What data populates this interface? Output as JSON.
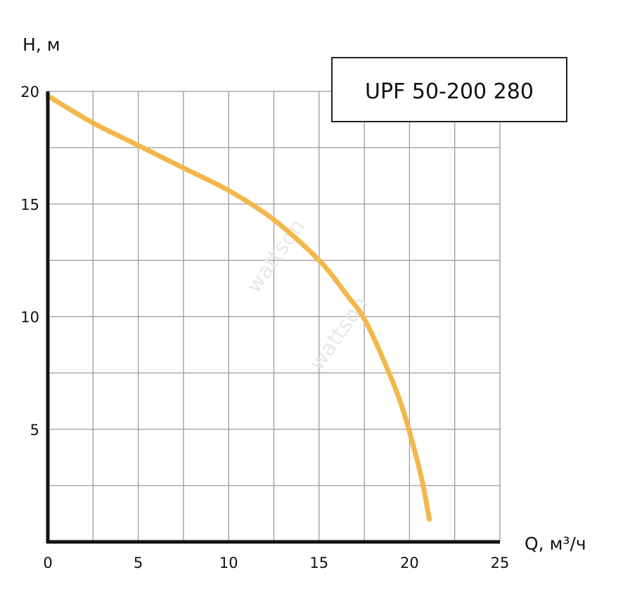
{
  "chart_data": {
    "type": "line",
    "title": "",
    "xlabel": "Q, м³/ч",
    "ylabel": "H, м",
    "xlim": [
      0,
      25
    ],
    "ylim": [
      0,
      20
    ],
    "x_ticks": [
      "0",
      "5",
      "10",
      "15",
      "20",
      "25"
    ],
    "y_ticks": [
      "5",
      "10",
      "15",
      "20"
    ],
    "grid": true,
    "grid_step_x": 2.5,
    "grid_step_y": 2.5,
    "legend_box": {
      "label": "UPF 50-200 280",
      "placement": "top-right"
    },
    "watermark": "wattson",
    "series": [
      {
        "name": "UPF 50-200 280",
        "color": "#f2b84b",
        "x": [
          0,
          2.5,
          5,
          7.5,
          10,
          12.5,
          15,
          16.5,
          17.5,
          18.5,
          19.5,
          20.2,
          20.7,
          21.1
        ],
        "y": [
          19.8,
          18.6,
          17.6,
          16.6,
          15.6,
          14.3,
          12.5,
          11.0,
          9.9,
          8.2,
          6.2,
          4.3,
          2.7,
          1.0
        ]
      }
    ]
  }
}
